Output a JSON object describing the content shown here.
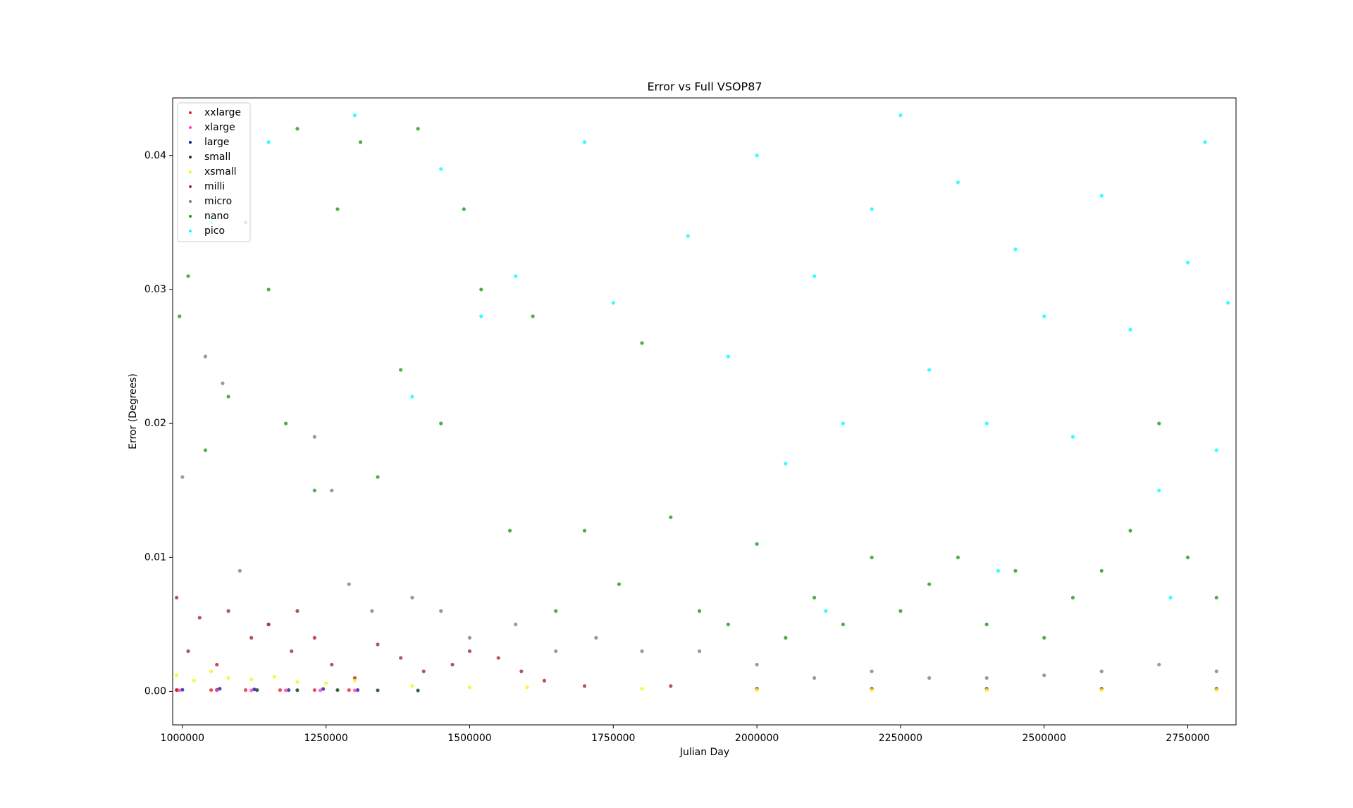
{
  "chart_data": {
    "type": "scatter",
    "title": "Error vs Full VSOP87",
    "x_label": "Julian Day",
    "y_label": "Error (Degrees)",
    "xlim": [
      983000,
      2834000
    ],
    "ylim": [
      -0.0025,
      0.0443
    ],
    "xticks": [
      1000000,
      1250000,
      1500000,
      1750000,
      2000000,
      2250000,
      2500000,
      2750000
    ],
    "yticks": [
      {
        "value": 0,
        "label": "0.00"
      },
      0.01,
      0.02,
      0.03,
      0.04
    ],
    "legend": "upper left",
    "series": [
      {
        "name": "xxlarge",
        "color": "#e8202a",
        "x": [
          990000,
          1050000,
          1110000,
          1170000,
          1230000,
          1290000
        ],
        "values": [
          0.0001,
          0.0001,
          0.0001,
          0.0001,
          0.0001,
          0.0001
        ]
      },
      {
        "name": "xlarge",
        "color": "#ff40c0",
        "x": [
          995000,
          1060000,
          1120000,
          1180000,
          1240000,
          1300000
        ],
        "values": [
          8e-05,
          8e-05,
          8e-05,
          8e-05,
          8e-05,
          8e-05
        ]
      },
      {
        "name": "large",
        "color": "#1a1aa0",
        "x": [
          1000000,
          1065000,
          1125000,
          1185000,
          1245000,
          1305000
        ],
        "values": [
          0.00012,
          0.0002,
          0.00015,
          0.0001,
          0.00018,
          0.0001
        ]
      },
      {
        "name": "small",
        "color": "#0a3d0a",
        "x": [
          990000,
          1060000,
          1130000,
          1200000,
          1270000,
          1340000,
          1410000
        ],
        "values": [
          0.0001,
          0.00012,
          0.0001,
          9e-05,
          0.0001,
          8e-05,
          7e-05
        ]
      },
      {
        "name": "xsmall",
        "color": "#f5f51a",
        "x": [
          990000,
          1020000,
          1050000,
          1080000,
          1120000,
          1160000,
          1200000,
          1250000,
          1300000,
          1400000,
          1500000,
          1600000,
          1800000,
          2000000,
          2200000,
          2400000,
          2600000,
          2800000
        ],
        "values": [
          0.0012,
          0.0008,
          0.0015,
          0.001,
          0.0009,
          0.0011,
          0.0007,
          0.0006,
          0.0008,
          0.0004,
          0.0003,
          0.0003,
          0.0002,
          0.0001,
          0.0001,
          0.0001,
          0.0001,
          0.0001
        ]
      },
      {
        "name": "milli",
        "color": "#a52a2a",
        "x": [
          990000,
          1010000,
          1030000,
          1060000,
          1080000,
          1120000,
          1150000,
          1190000,
          1200000,
          1230000,
          1260000,
          1300000,
          1340000,
          1380000,
          1420000,
          1470000,
          1500000,
          1550000,
          1590000,
          1630000,
          1700000,
          1850000,
          2000000,
          2200000,
          2400000,
          2600000,
          2800000
        ],
        "values": [
          0.007,
          0.003,
          0.0055,
          0.002,
          0.006,
          0.004,
          0.005,
          0.003,
          0.006,
          0.004,
          0.002,
          0.001,
          0.0035,
          0.0025,
          0.0015,
          0.002,
          0.003,
          0.0025,
          0.0015,
          0.0008,
          0.0004,
          0.0004,
          0.0002,
          0.0002,
          0.0002,
          0.0002,
          0.0002
        ]
      },
      {
        "name": "micro",
        "color": "#808080",
        "x": [
          1000000,
          1040000,
          1070000,
          1100000,
          1150000,
          1230000,
          1260000,
          1290000,
          1330000,
          1400000,
          1450000,
          1500000,
          1580000,
          1650000,
          1720000,
          1800000,
          1900000,
          2000000,
          2100000,
          2200000,
          2300000,
          2400000,
          2500000,
          2600000,
          2700000,
          2800000
        ],
        "values": [
          0.016,
          0.025,
          0.023,
          0.009,
          0.005,
          0.019,
          0.015,
          0.008,
          0.006,
          0.007,
          0.006,
          0.004,
          0.005,
          0.003,
          0.004,
          0.003,
          0.003,
          0.002,
          0.001,
          0.0015,
          0.001,
          0.001,
          0.0012,
          0.0015,
          0.002,
          0.0015
        ]
      },
      {
        "name": "nano",
        "color": "#1f9a1f",
        "x": [
          995000,
          1010000,
          1040000,
          1080000,
          1110000,
          1150000,
          1180000,
          1200000,
          1230000,
          1270000,
          1310000,
          1340000,
          1380000,
          1410000,
          1450000,
          1490000,
          1520000,
          1570000,
          1610000,
          1650000,
          1700000,
          1760000,
          1800000,
          1850000,
          1900000,
          1950000,
          2000000,
          2050000,
          2100000,
          2150000,
          2200000,
          2250000,
          2300000,
          2350000,
          2400000,
          2450000,
          2500000,
          2550000,
          2600000,
          2650000,
          2700000,
          2750000,
          2800000
        ],
        "values": [
          0.028,
          0.031,
          0.018,
          0.022,
          0.035,
          0.03,
          0.02,
          0.042,
          0.015,
          0.036,
          0.041,
          0.016,
          0.024,
          0.042,
          0.02,
          0.036,
          0.03,
          0.012,
          0.028,
          0.006,
          0.012,
          0.008,
          0.026,
          0.013,
          0.006,
          0.005,
          0.011,
          0.004,
          0.007,
          0.005,
          0.01,
          0.006,
          0.008,
          0.01,
          0.005,
          0.009,
          0.004,
          0.007,
          0.009,
          0.012,
          0.02,
          0.01,
          0.007
        ]
      },
      {
        "name": "pico",
        "color": "#00ffff",
        "x": [
          1050000,
          1150000,
          1300000,
          1400000,
          1450000,
          1520000,
          1580000,
          1700000,
          1750000,
          1880000,
          1950000,
          2000000,
          2050000,
          2100000,
          2150000,
          2200000,
          2250000,
          2300000,
          2350000,
          2400000,
          2450000,
          2500000,
          2550000,
          2600000,
          2650000,
          2700000,
          2750000,
          2780000,
          2800000,
          2820000,
          2120000,
          2420000,
          2720000
        ],
        "values": [
          0.035,
          0.041,
          0.043,
          0.022,
          0.039,
          0.028,
          0.031,
          0.041,
          0.029,
          0.034,
          0.025,
          0.04,
          0.017,
          0.031,
          0.02,
          0.036,
          0.043,
          0.024,
          0.038,
          0.02,
          0.033,
          0.028,
          0.019,
          0.037,
          0.027,
          0.015,
          0.032,
          0.041,
          0.018,
          0.029,
          0.006,
          0.009,
          0.007
        ]
      }
    ]
  }
}
